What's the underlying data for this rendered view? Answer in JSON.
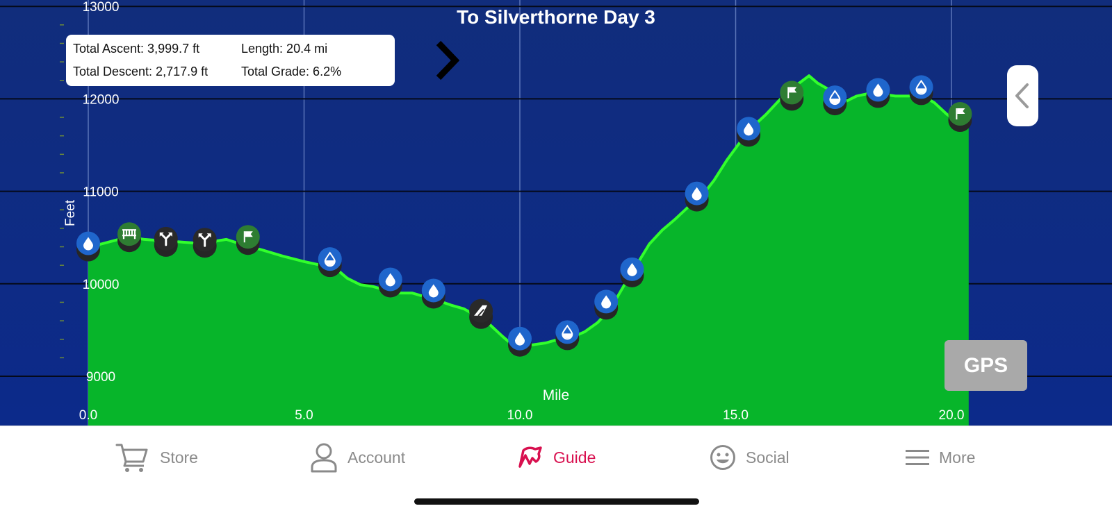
{
  "chart_data": {
    "type": "area",
    "title": "To Silverthorne Day 3",
    "xlabel": "Mile",
    "ylabel": "Feet",
    "xlim": [
      0,
      20.4
    ],
    "ylim": [
      8580,
      13000
    ],
    "x_ticks": [
      {
        "value": 0,
        "label": "0.0"
      },
      {
        "value": 5,
        "label": "5.0"
      },
      {
        "value": 10,
        "label": "10.0"
      },
      {
        "value": 15,
        "label": "15.0"
      },
      {
        "value": 20,
        "label": "20.0"
      }
    ],
    "y_ticks": [
      {
        "value": 13000,
        "label": "13000"
      },
      {
        "value": 12000,
        "label": "12000"
      },
      {
        "value": 11000,
        "label": "11000"
      },
      {
        "value": 10000,
        "label": "10000"
      },
      {
        "value": 9000,
        "label": "9000"
      }
    ],
    "grid": true,
    "colors": {
      "background": "#12307f",
      "fill": "#07b52a",
      "line": "#32ff2c"
    },
    "series": [
      {
        "x": [
          0,
          0.3,
          0.7,
          1.0,
          1.3,
          1.6,
          1.9,
          2.2,
          2.5,
          2.8,
          3.2,
          3.6,
          4.0,
          4.5,
          5.0,
          5.5,
          5.8,
          6.0,
          6.3,
          6.6,
          6.9,
          7.2,
          7.5,
          7.8,
          8.1,
          8.4,
          8.7,
          9.0,
          9.3,
          9.6,
          9.8,
          10.0,
          10.3,
          10.6,
          10.9,
          11.2,
          11.5,
          11.8,
          12.1,
          12.4,
          12.7,
          13.0,
          13.3,
          13.6,
          13.9,
          14.2,
          14.5,
          14.8,
          15.1,
          15.4,
          15.7,
          16.0,
          16.3,
          16.5,
          16.7,
          16.9,
          17.2,
          17.5,
          17.8,
          18.1,
          18.4,
          18.7,
          19.0,
          19.3,
          19.6,
          19.9,
          20.2,
          20.4
        ],
        "y": [
          10400,
          10430,
          10480,
          10500,
          10480,
          10470,
          10460,
          10450,
          10440,
          10450,
          10480,
          10420,
          10370,
          10300,
          10240,
          10190,
          10140,
          10060,
          9990,
          9970,
          9930,
          9900,
          9900,
          9860,
          9820,
          9770,
          9730,
          9650,
          9560,
          9430,
          9350,
          9330,
          9340,
          9360,
          9400,
          9420,
          9480,
          9580,
          9730,
          9970,
          10200,
          10430,
          10580,
          10700,
          10830,
          10940,
          11120,
          11340,
          11530,
          11700,
          11830,
          11980,
          12120,
          12180,
          12250,
          12170,
          12090,
          11960,
          12030,
          12060,
          12050,
          12030,
          12030,
          12040,
          11960,
          11830,
          11740,
          11700
        ]
      }
    ],
    "markers": [
      {
        "x": 0.0,
        "y": 10400,
        "icon": "water-drop-icon",
        "color": "#1f66cc"
      },
      {
        "x": 0.95,
        "y": 10500,
        "icon": "bridge-icon",
        "color": "#2e7d32"
      },
      {
        "x": 1.8,
        "y": 10450,
        "icon": "fork-icon",
        "color": "#2a2a2a"
      },
      {
        "x": 2.7,
        "y": 10440,
        "icon": "fork-icon",
        "color": "#2a2a2a"
      },
      {
        "x": 3.7,
        "y": 10470,
        "icon": "flag-icon",
        "color": "#2e7d32"
      },
      {
        "x": 5.6,
        "y": 10230,
        "icon": "water-half-icon",
        "color": "#1f66cc"
      },
      {
        "x": 7.0,
        "y": 10010,
        "icon": "water-drop-icon",
        "color": "#1f66cc"
      },
      {
        "x": 8.0,
        "y": 9890,
        "icon": "water-drop-icon",
        "color": "#1f66cc"
      },
      {
        "x": 9.1,
        "y": 9670,
        "icon": "summit-icon",
        "color": "#2a2a2a"
      },
      {
        "x": 10.0,
        "y": 9370,
        "icon": "water-drop-icon",
        "color": "#1f66cc"
      },
      {
        "x": 11.1,
        "y": 9440,
        "icon": "water-half-icon",
        "color": "#1f66cc"
      },
      {
        "x": 12.0,
        "y": 9770,
        "icon": "water-drop-icon",
        "color": "#1f66cc"
      },
      {
        "x": 12.6,
        "y": 10120,
        "icon": "water-drop-icon",
        "color": "#1f66cc"
      },
      {
        "x": 14.1,
        "y": 10940,
        "icon": "water-drop-icon",
        "color": "#1f66cc"
      },
      {
        "x": 15.3,
        "y": 11640,
        "icon": "water-drop-icon",
        "color": "#1f66cc"
      },
      {
        "x": 16.3,
        "y": 12030,
        "icon": "flag-icon",
        "color": "#2e7d32"
      },
      {
        "x": 17.3,
        "y": 11980,
        "icon": "water-half-icon",
        "color": "#1f66cc"
      },
      {
        "x": 18.3,
        "y": 12060,
        "icon": "water-drop-icon",
        "color": "#1f66cc"
      },
      {
        "x": 19.3,
        "y": 12090,
        "icon": "water-half-icon",
        "color": "#1f66cc"
      },
      {
        "x": 20.2,
        "y": 11800,
        "icon": "flag-icon",
        "color": "#2e7d32"
      }
    ]
  },
  "stats": {
    "total_ascent": "Total Ascent: 3,999.7 ft",
    "length": "Length: 20.4 mi",
    "total_descent": "Total Descent: 2,717.9 ft",
    "total_grade": "Total Grade: 6.2%",
    "expand_icon": "chevron-right-icon"
  },
  "side_toggle_icon": "chevron-left-icon",
  "gps_label": "GPS",
  "tabbar": {
    "items": [
      {
        "label": "Store",
        "icon": "cart-icon",
        "active": false
      },
      {
        "label": "Account",
        "icon": "person-icon",
        "active": false
      },
      {
        "label": "Guide",
        "icon": "guide-logo-icon",
        "active": true
      },
      {
        "label": "Social",
        "icon": "smiley-icon",
        "active": false
      },
      {
        "label": "More",
        "icon": "menu-icon",
        "active": false
      }
    ],
    "active_color": "#d8104f",
    "inactive_color": "#8a8a8a"
  }
}
